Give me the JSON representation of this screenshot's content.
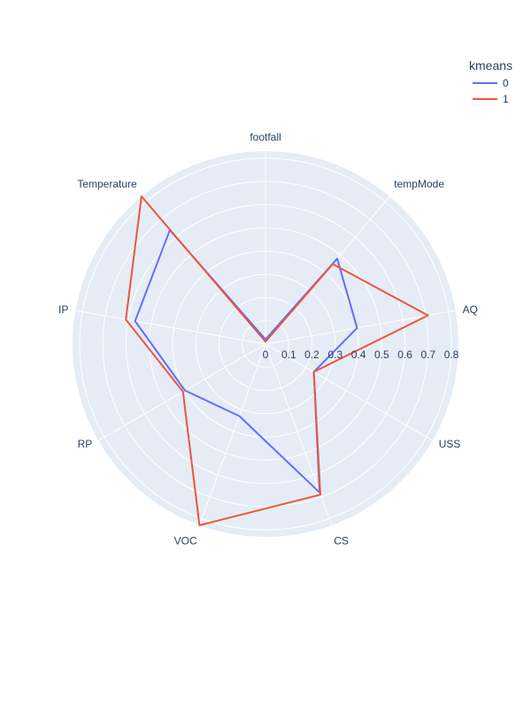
{
  "legend": {
    "title": "kmeans",
    "items": [
      {
        "label": "0",
        "color": "#636efa"
      },
      {
        "label": "1",
        "color": "#ef553b"
      }
    ]
  },
  "chart_data": {
    "type": "radar",
    "title": "",
    "axes": [
      "footfall",
      "tempMode",
      "AQ",
      "USS",
      "CS",
      "VOC",
      "RP",
      "IP",
      "Temperature"
    ],
    "radial_ticks": [
      0,
      0.1,
      0.2,
      0.3,
      0.4,
      0.5,
      0.6,
      0.7,
      0.8
    ],
    "radial_range": [
      0,
      0.83
    ],
    "grid": true,
    "legend_position": "top-right",
    "series": [
      {
        "name": "0",
        "color": "#636efa",
        "values": [
          0.02,
          0.48,
          0.4,
          0.24,
          0.68,
          0.33,
          0.4,
          0.57,
          0.64
        ]
      },
      {
        "name": "1",
        "color": "#ef553b",
        "values": [
          0.01,
          0.45,
          0.71,
          0.24,
          0.69,
          0.83,
          0.41,
          0.61,
          0.83
        ]
      }
    ]
  }
}
